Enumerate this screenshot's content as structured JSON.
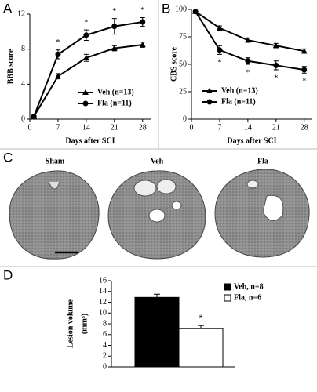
{
  "chart_data": [
    {
      "panel": "A",
      "type": "line",
      "xlabel": "Days after SCI",
      "ylabel": "BBB score",
      "x": [
        1,
        7,
        14,
        21,
        28
      ],
      "xlim": [
        0,
        30
      ],
      "xticks": [
        0,
        7,
        14,
        21,
        28
      ],
      "ylim": [
        0,
        12
      ],
      "yticks": [
        0,
        4,
        8,
        12
      ],
      "legend": "lower right",
      "significance_side": "above",
      "series": [
        {
          "name": "Veh (n=13)",
          "color": "#000000",
          "marker": "triangle",
          "values": [
            0.3,
            4.9,
            7.0,
            8.1,
            8.5
          ],
          "errors": [
            0.1,
            0.3,
            0.4,
            0.3,
            0.3
          ]
        },
        {
          "name": "Fla (n=11)",
          "color": "#000000",
          "marker": "circle",
          "values": [
            0.3,
            7.4,
            9.6,
            10.6,
            11.1
          ],
          "errors": [
            0.1,
            0.5,
            0.6,
            0.9,
            0.5
          ],
          "significance": [
            null,
            "*",
            "*",
            "*",
            "*"
          ]
        }
      ]
    },
    {
      "panel": "B",
      "type": "line",
      "xlabel": "Days after SCI",
      "ylabel": "CBS score",
      "x": [
        1,
        7,
        14,
        21,
        28
      ],
      "xlim": [
        0,
        30
      ],
      "xticks": [
        0,
        7,
        14,
        21,
        28
      ],
      "ylim": [
        0,
        100
      ],
      "yticks": [
        0,
        25,
        50,
        75,
        100
      ],
      "legend": "lower left",
      "significance_side": "below",
      "series": [
        {
          "name": "Veh (n=13)",
          "color": "#000000",
          "marker": "triangle",
          "values": [
            98,
            83,
            72,
            67,
            62
          ],
          "errors": [
            1,
            2,
            2,
            2,
            2
          ]
        },
        {
          "name": "Fla (n=11)",
          "color": "#000000",
          "marker": "circle",
          "values": [
            98,
            63,
            53,
            49,
            45
          ],
          "errors": [
            1,
            4,
            3,
            4,
            3
          ],
          "significance": [
            null,
            "*",
            "*",
            "*",
            "*"
          ]
        }
      ]
    },
    {
      "panel": "D",
      "type": "bar",
      "ylabel": "Lesion volume",
      "yunit": "(mm³)",
      "ylim": [
        0,
        16
      ],
      "yticks": [
        0,
        2,
        4,
        6,
        8,
        10,
        12,
        14,
        16
      ],
      "legend": "right",
      "series": [
        {
          "name": "Veh, n=8",
          "color": "#000000",
          "values": [
            12.9
          ],
          "errors": [
            0.6
          ]
        },
        {
          "name": "Fla, n=6",
          "color": "#ffffff",
          "values": [
            7.1
          ],
          "errors": [
            0.6
          ],
          "significance": [
            "*"
          ]
        }
      ]
    }
  ],
  "panel_c": {
    "label": "C",
    "titles": [
      "Sham",
      "Veh",
      "Fla"
    ]
  }
}
